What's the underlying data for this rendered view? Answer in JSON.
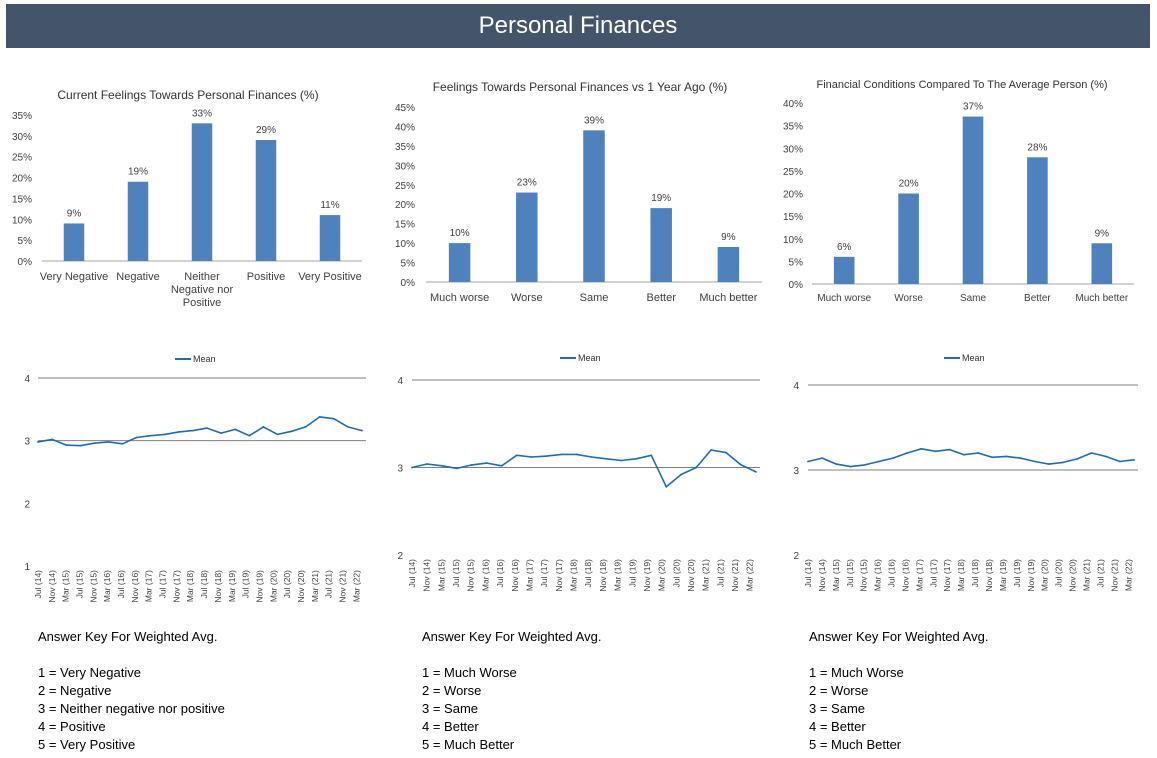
{
  "page": {
    "title": "Personal Finances"
  },
  "colors": {
    "header_bg": "#44546a",
    "bar": "#4f81bd",
    "line": "#1f6cb4",
    "axis": "#a6a6a6"
  },
  "chart_data": [
    {
      "id": "bar1",
      "type": "bar",
      "title": "Current Feelings Towards Personal Finances (%)",
      "categories": [
        "Very Negative",
        "Negative",
        "Neither Negative nor Positive",
        "Positive",
        "Very Positive"
      ],
      "category_lines": [
        [
          "Very Negative"
        ],
        [
          "Negative"
        ],
        [
          "Neither",
          "Negative nor",
          "Positive"
        ],
        [
          "Positive"
        ],
        [
          "Very Positive"
        ]
      ],
      "values": [
        9,
        19,
        33,
        29,
        11
      ],
      "value_labels": [
        "9%",
        "19%",
        "33%",
        "29%",
        "11%"
      ],
      "yticks": [
        "0%",
        "5%",
        "10%",
        "15%",
        "20%",
        "25%",
        "30%",
        "35%"
      ],
      "ylim": [
        0,
        35
      ],
      "grid": false
    },
    {
      "id": "bar2",
      "type": "bar",
      "title": "Feelings Towards Personal Finances vs 1 Year Ago (%)",
      "categories": [
        "Much worse",
        "Worse",
        "Same",
        "Better",
        "Much better"
      ],
      "category_lines": [
        [
          "Much worse"
        ],
        [
          "Worse"
        ],
        [
          "Same"
        ],
        [
          "Better"
        ],
        [
          "Much better"
        ]
      ],
      "values": [
        10,
        23,
        39,
        19,
        9
      ],
      "value_labels": [
        "10%",
        "23%",
        "39%",
        "19%",
        "9%"
      ],
      "yticks": [
        "0%",
        "5%",
        "10%",
        "15%",
        "20%",
        "25%",
        "30%",
        "35%",
        "40%",
        "45%"
      ],
      "ylim": [
        0,
        45
      ],
      "grid": false
    },
    {
      "id": "bar3",
      "type": "bar",
      "title": "Financial Conditions Compared To The Average Person (%)",
      "categories": [
        "Much worse",
        "Worse",
        "Same",
        "Better",
        "Much better"
      ],
      "category_lines": [
        [
          "Much worse"
        ],
        [
          "Worse"
        ],
        [
          "Same"
        ],
        [
          "Better"
        ],
        [
          "Much better"
        ]
      ],
      "values": [
        6,
        20,
        37,
        28,
        9
      ],
      "value_labels": [
        "6%",
        "20%",
        "37%",
        "28%",
        "9%"
      ],
      "yticks": [
        "0%",
        "5%",
        "10%",
        "15%",
        "20%",
        "25%",
        "30%",
        "35%",
        "40%"
      ],
      "ylim": [
        0,
        40
      ],
      "grid": false
    },
    {
      "id": "line1",
      "type": "line",
      "legend": "Mean",
      "x": [
        "Jul (14)",
        "Nov (14)",
        "Mar (15)",
        "Jul (15)",
        "Nov (15)",
        "Mar (16)",
        "Jul (16)",
        "Nov (16)",
        "Mar (17)",
        "Jul (17)",
        "Nov (17)",
        "Mar (18)",
        "Jul (18)",
        "Nov (18)",
        "Mar (19)",
        "Jul (19)",
        "Nov (19)",
        "Mar (20)",
        "Jul (20)",
        "Nov (20)",
        "Mar (21)",
        "Jul (21)",
        "Nov (21)",
        "Mar (22)"
      ],
      "xtick_labels": [
        "Jul (14)",
        "Nov (14)",
        "Mar (15)",
        "Jul (15)",
        "Nov (15)",
        "Mar (16)",
        "Jul (16)",
        "Nov (16)",
        "Mar (17)",
        "Jul (17)",
        "Nov (17)",
        "Mar (18)",
        "Jul (18)",
        "Nov (18)",
        "Mar (19)",
        "Jul (19)",
        "Nov (19)",
        "Mar (20)",
        "Jul (20)",
        "Nov (20)",
        "Mar (21)",
        "Jul (21)",
        "Nov (21)",
        "Mar (22)"
      ],
      "values": [
        2.98,
        3.02,
        2.93,
        2.92,
        2.96,
        2.98,
        2.95,
        3.05,
        3.08,
        3.1,
        3.14,
        3.16,
        3.2,
        3.12,
        3.18,
        3.08,
        3.22,
        3.1,
        3.15,
        3.22,
        3.38,
        3.35,
        3.22,
        3.16
      ],
      "yticks": [
        "1",
        "2",
        "3",
        "4"
      ],
      "ylim": [
        1,
        4
      ],
      "gridlines": [
        3,
        4
      ]
    },
    {
      "id": "line2",
      "type": "line",
      "legend": "Mean",
      "x": [
        "Jul (14)",
        "Nov (14)",
        "Mar (15)",
        "Jul (15)",
        "Nov (15)",
        "Mar (16)",
        "Jul (16)",
        "Nov (16)",
        "Mar (17)",
        "Jul (17)",
        "Nov (17)",
        "Mar (18)",
        "Jul (18)",
        "Nov (18)",
        "Mar (19)",
        "Jul (19)",
        "Nov (19)",
        "Mar (20)",
        "Jul (20)",
        "Nov (20)",
        "Mar (21)",
        "Jul (21)",
        "Nov (21)",
        "Mar (22)"
      ],
      "xtick_labels": [
        "Jul (14)",
        "Nov (14)",
        "Mar (15)",
        "Jul (15)",
        "Nov (15)",
        "Mar (16)",
        "Jul (16)",
        "Nov (16)",
        "Mar (17)",
        "Jul (17)",
        "Nov (17)",
        "Mar (18)",
        "Jul (18)",
        "Nov (18)",
        "Mar (19)",
        "Jul (19)",
        "Nov (19)",
        "Mar (20)",
        "Jul (20)",
        "Nov (20)",
        "Mar (21)",
        "Jul (21)",
        "Nov (21)",
        "Mar (22)"
      ],
      "values": [
        3.0,
        3.04,
        3.02,
        2.99,
        3.03,
        3.05,
        3.02,
        3.14,
        3.12,
        3.13,
        3.15,
        3.15,
        3.12,
        3.1,
        3.08,
        3.1,
        3.14,
        2.78,
        2.92,
        3.0,
        3.2,
        3.17,
        3.03,
        2.95
      ],
      "yticks": [
        "2",
        "3",
        "4"
      ],
      "ylim": [
        2,
        4
      ],
      "gridlines": [
        3,
        4
      ]
    },
    {
      "id": "line3",
      "type": "line",
      "legend": "Mean",
      "x": [
        "Jul (14)",
        "Nov (14)",
        "Mar (15)",
        "Jul (15)",
        "Nov (15)",
        "Mar (16)",
        "Jul (16)",
        "Nov (16)",
        "Mar (17)",
        "Jul (17)",
        "Nov (17)",
        "Mar (18)",
        "Jul (18)",
        "Nov (18)",
        "Mar (19)",
        "Jul (19)",
        "Nov (19)",
        "Mar (20)",
        "Jul (20)",
        "Nov (20)",
        "Mar (21)",
        "Jul (21)",
        "Nov (21)",
        "Mar (22)"
      ],
      "xtick_labels": [
        "Jul (14)",
        "Nov (14)",
        "Mar (15)",
        "Jul (15)",
        "Nov (15)",
        "Mar (16)",
        "Jul (16)",
        "Nov (16)",
        "Mar (17)",
        "Jul (17)",
        "Nov (17)",
        "Mar (18)",
        "Jul (18)",
        "Nov (18)",
        "Mar (19)",
        "Jul (19)",
        "Nov (19)",
        "Mar (20)",
        "Jul (20)",
        "Nov (20)",
        "Mar (21)",
        "Jul (21)",
        "Nov (21)",
        "Mar (22)"
      ],
      "values": [
        3.1,
        3.14,
        3.07,
        3.04,
        3.06,
        3.1,
        3.14,
        3.2,
        3.25,
        3.22,
        3.24,
        3.18,
        3.2,
        3.15,
        3.16,
        3.14,
        3.1,
        3.07,
        3.09,
        3.13,
        3.2,
        3.16,
        3.1,
        3.12
      ],
      "yticks": [
        "2",
        "3",
        "4"
      ],
      "ylim": [
        2,
        4
      ],
      "gridlines": [
        3,
        4
      ]
    }
  ],
  "answer_keys": [
    {
      "title": "Answer Key For Weighted Avg.",
      "items": [
        "1 = Very Negative",
        "2 = Negative",
        "3 = Neither negative nor positive",
        "4 = Positive",
        "5 = Very Positive"
      ]
    },
    {
      "title": "Answer Key For Weighted Avg.",
      "items": [
        "1 = Much Worse",
        "2 = Worse",
        "3 = Same",
        "4 = Better",
        "5 = Much Better"
      ]
    },
    {
      "title": "Answer Key For Weighted Avg.",
      "items": [
        "1 = Much Worse",
        "2 = Worse",
        "3 = Same",
        "4 = Better",
        "5 = Much Better"
      ]
    }
  ]
}
